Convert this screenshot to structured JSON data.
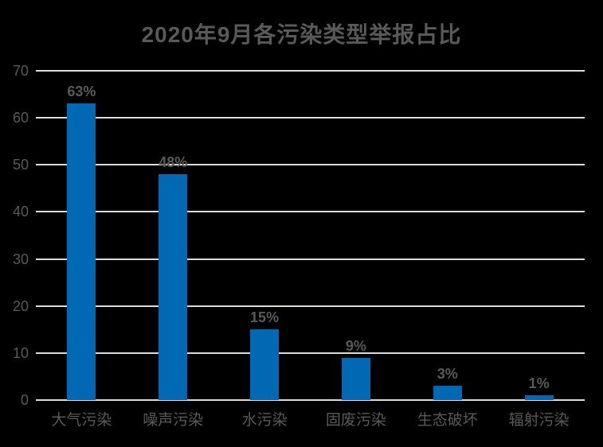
{
  "page": {
    "background_color": "#000000"
  },
  "chart_data": {
    "type": "bar",
    "title": "2020年9月各污染类型举报占比",
    "categories": [
      "大气污染",
      "噪声污染",
      "水污染",
      "固废污染",
      "生态破坏",
      "辐射污染"
    ],
    "values": [
      63,
      48,
      15,
      9,
      3,
      1
    ],
    "data_labels": [
      "63%",
      "48%",
      "15%",
      "9%",
      "3%",
      "1%"
    ],
    "xlabel": "",
    "ylabel": "",
    "ylim": [
      0,
      70
    ],
    "ytick_step": 10,
    "ytick_labels": [
      "0",
      "10",
      "20",
      "30",
      "40",
      "50",
      "60",
      "70"
    ],
    "grid": true,
    "legend": "none",
    "bar_color": "#0169B3",
    "text_color": "#595959",
    "gridline_color": "#DCDCDC"
  }
}
